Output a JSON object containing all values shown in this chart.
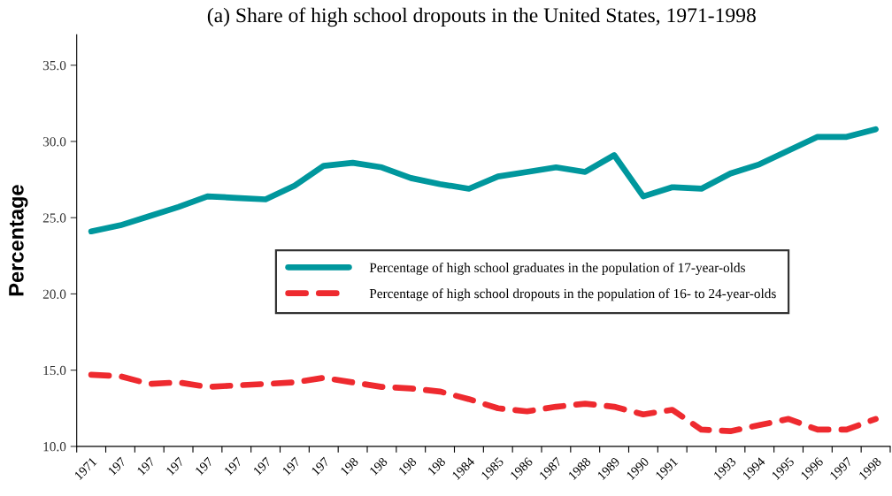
{
  "chart_data": {
    "type": "line",
    "title": "(a) Share of high school dropouts in the United States, 1971-1998",
    "ylabel": "Percentage",
    "categories": [
      "1971",
      "197",
      "197",
      "197",
      "197",
      "197",
      "197",
      "197",
      "197",
      "198",
      "198",
      "198",
      "198",
      "1984",
      "1985",
      "1986",
      "1987",
      "1988",
      "1989",
      "1990",
      "1991",
      null,
      "1993",
      "1994",
      "1995",
      "1996",
      "1997",
      "1998"
    ],
    "series": [
      {
        "name": "Percentage of high school graduates in the population of 17-year-olds",
        "color": "#00979d",
        "line_style": "solid",
        "values": [
          24.1,
          24.5,
          25.1,
          25.7,
          26.4,
          26.3,
          26.2,
          27.1,
          28.4,
          28.6,
          28.3,
          27.6,
          27.2,
          26.9,
          27.7,
          28.0,
          28.3,
          28.0,
          29.1,
          26.4,
          27.0,
          26.9,
          27.9,
          28.5,
          29.4,
          30.3,
          30.3,
          30.8
        ]
      },
      {
        "name": "Percentage of high school dropouts in the population of 16- to 24-year-olds",
        "color": "#ee2a2f",
        "line_style": "dashed",
        "values": [
          14.7,
          14.6,
          14.1,
          14.2,
          13.9,
          14.0,
          14.1,
          14.2,
          14.5,
          14.2,
          13.9,
          13.8,
          13.6,
          13.1,
          12.5,
          12.3,
          12.6,
          12.8,
          12.6,
          12.1,
          12.4,
          11.1,
          11.0,
          11.4,
          11.8,
          11.1,
          11.1,
          11.8
        ]
      }
    ],
    "ylim": [
      10,
      37
    ],
    "yticks": [
      {
        "value": 10,
        "label": "10.0"
      },
      {
        "value": 15,
        "label": "15.0"
      },
      {
        "value": 20,
        "label": "20.0"
      },
      {
        "value": 25,
        "label": "25.0"
      },
      {
        "value": 30,
        "label": "30.0"
      },
      {
        "value": 35,
        "label": "35.0"
      }
    ],
    "grid": false,
    "legend": "center",
    "marker": "none"
  }
}
